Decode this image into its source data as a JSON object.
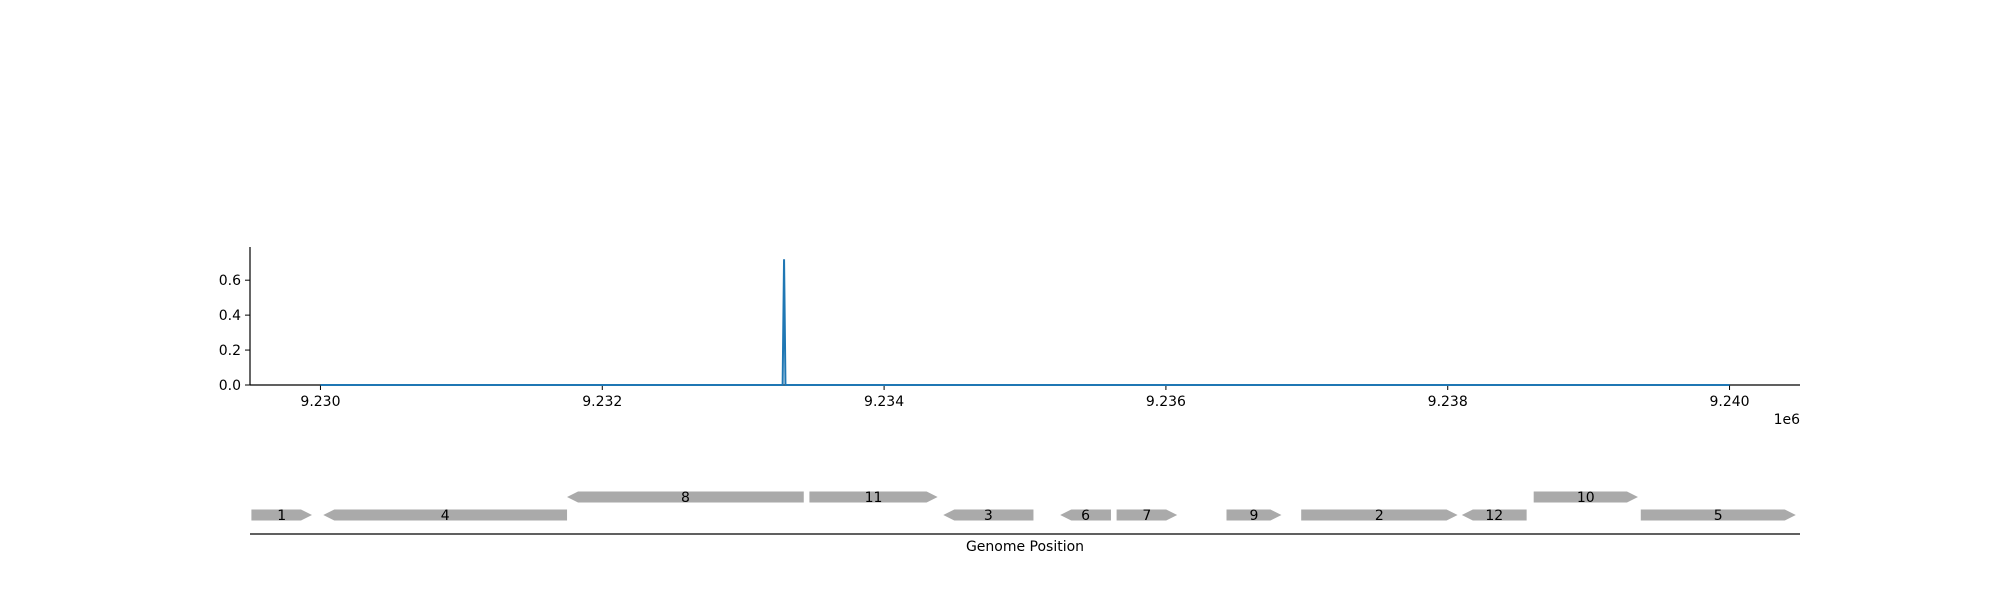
{
  "chart_data": [
    {
      "type": "line",
      "x_offset_label": "1e6",
      "x_ticks": [
        9.23,
        9.232,
        9.234,
        9.236,
        9.238,
        9.24
      ],
      "x_tick_labels": [
        "9.230",
        "9.232",
        "9.234",
        "9.236",
        "9.238",
        "9.240"
      ],
      "y_ticks": [
        0.0,
        0.2,
        0.4,
        0.6
      ],
      "y_tick_labels": [
        "0.0",
        "0.2",
        "0.4",
        "0.6"
      ],
      "xlim": [
        9229500,
        9240500
      ],
      "ylim": [
        0,
        0.79
      ],
      "series": [
        {
          "color": "#1f77b4",
          "x": [
            9230000,
            9233280,
            9233290,
            9233300,
            9240000
          ],
          "y": [
            0,
            0,
            0.72,
            0,
            0
          ]
        }
      ]
    },
    {
      "type": "gene_track",
      "xlabel": "Genome Position",
      "fill_color": "#aaaaaa",
      "genes": [
        {
          "label": "1",
          "start": 9229510,
          "end": 9229940,
          "strand": "+",
          "row": 0
        },
        {
          "label": "4",
          "start": 9230020,
          "end": 9231750,
          "strand": "-",
          "row": 0
        },
        {
          "label": "8",
          "start": 9231750,
          "end": 9233430,
          "strand": "-",
          "row": 1
        },
        {
          "label": "11",
          "start": 9233470,
          "end": 9234380,
          "strand": "+",
          "row": 1
        },
        {
          "label": "3",
          "start": 9234420,
          "end": 9235060,
          "strand": "-",
          "row": 0
        },
        {
          "label": "6",
          "start": 9235250,
          "end": 9235610,
          "strand": "-",
          "row": 0
        },
        {
          "label": "7",
          "start": 9235650,
          "end": 9236080,
          "strand": "+",
          "row": 0
        },
        {
          "label": "9",
          "start": 9236430,
          "end": 9236820,
          "strand": "+",
          "row": 0
        },
        {
          "label": "2",
          "start": 9236960,
          "end": 9238070,
          "strand": "+",
          "row": 0
        },
        {
          "label": "12",
          "start": 9238100,
          "end": 9238560,
          "strand": "-",
          "row": 0
        },
        {
          "label": "10",
          "start": 9238610,
          "end": 9239350,
          "strand": "+",
          "row": 1
        },
        {
          "label": "5",
          "start": 9239370,
          "end": 9240470,
          "strand": "+",
          "row": 0
        }
      ]
    }
  ]
}
